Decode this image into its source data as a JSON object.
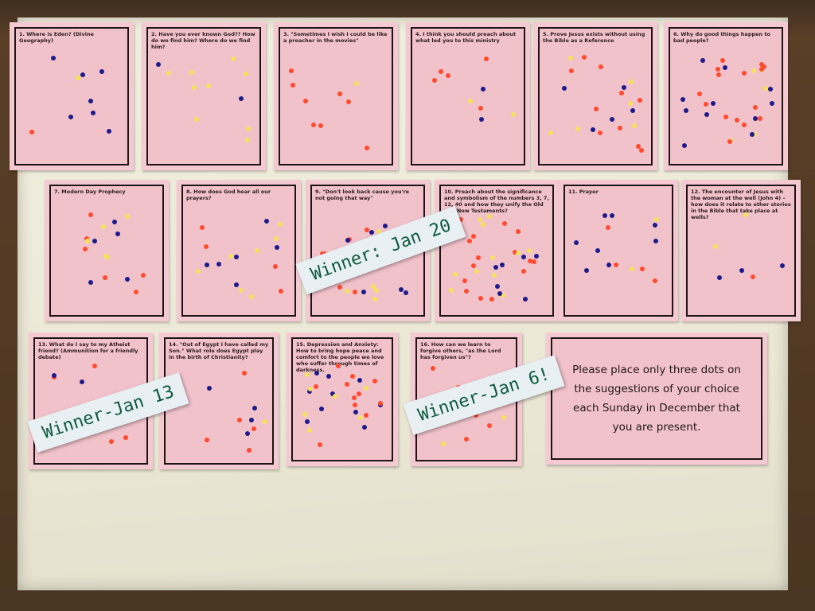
{
  "cards": [
    {
      "num": "1.",
      "text": "Where is Eden? (Divine Geography)",
      "dots": "rbbbbbbby"
    },
    {
      "num": "2.",
      "text": "Have you ever known God?? How do we find him? Where do we find him?",
      "dots": "ybybyyyyyyy"
    },
    {
      "num": "3.",
      "text": "\"Sometimes I wish I could be like a preacher in the movies\"",
      "dots": "rrrryrrrr"
    },
    {
      "num": "4.",
      "text": "I think you should preach about what led you to this ministry",
      "dots": "rrybrbrry"
    },
    {
      "num": "5.",
      "text": "Prove Jesus exists without using the Bible as a Reference",
      "dots": "rrrrrrryrbbyyybbryrby"
    },
    {
      "num": "6.",
      "text": "Why do good things happen to bad people?",
      "dots": "ryrbrrryrrbyrrbbrryrbbbrrybbrbb"
    },
    {
      "num": "7.",
      "text": "Modern Day Prophecy",
      "dots": "rbrbbyrrrbbyryyy"
    },
    {
      "num": "8.",
      "text": "How does God hear all our prayers?",
      "dots": "rrrrbyyybbyyybbyb"
    },
    {
      "num": "9.",
      "text": "\"Don't look back cause you're not going that way\"",
      "dots": "rryrrbyybrrybyrbbyyb"
    },
    {
      "num": "10.",
      "text": "Preach about the significance and symbolism of the numbers 3, 7, 12, 40 and how they unify the Old and New Testaments?",
      "dots": "rrrrryryrryybrrbybbyrryybrbyybrry"
    },
    {
      "num": "11.",
      "text": "Prayer",
      "dots": "rrrrbbbbbbybyb"
    },
    {
      "num": "12.",
      "text": "The encounter of Jesus with the woman at the well (John 4) – how does it relate to other stories in the Bible that take place at wells?",
      "dots": "rybybb"
    },
    {
      "num": "13.",
      "text": "What do I say to my Atheist friend? (Ammunition for a friendly debate)",
      "dots": "rrrrrrrbb"
    },
    {
      "num": "14.",
      "text": "\"Out of Egypt I have called my Son.\" What role does Egypt play in the birth of Christianity?",
      "dots": "rrrbrrbybb"
    },
    {
      "num": "15.",
      "text": "Depression and Anxiety: How to bring hope peace and comfort to the people we love who suffer through times of darkness.",
      "dots": "ryrrrbrrbbbyrbbrbrbyrbyyrbyy"
    },
    {
      "num": "16.",
      "text": "How can we learn to forgive others, \"as the Lord has forgiven us\"?",
      "dots": "rrrrryyr"
    }
  ],
  "instruction": "Please place only three dots on the suggestions of your choice each Sunday in December that you are present.",
  "labels": [
    "Winner: Jan 20",
    "Winner-Jan 13",
    "Winner-Jan 6!"
  ]
}
